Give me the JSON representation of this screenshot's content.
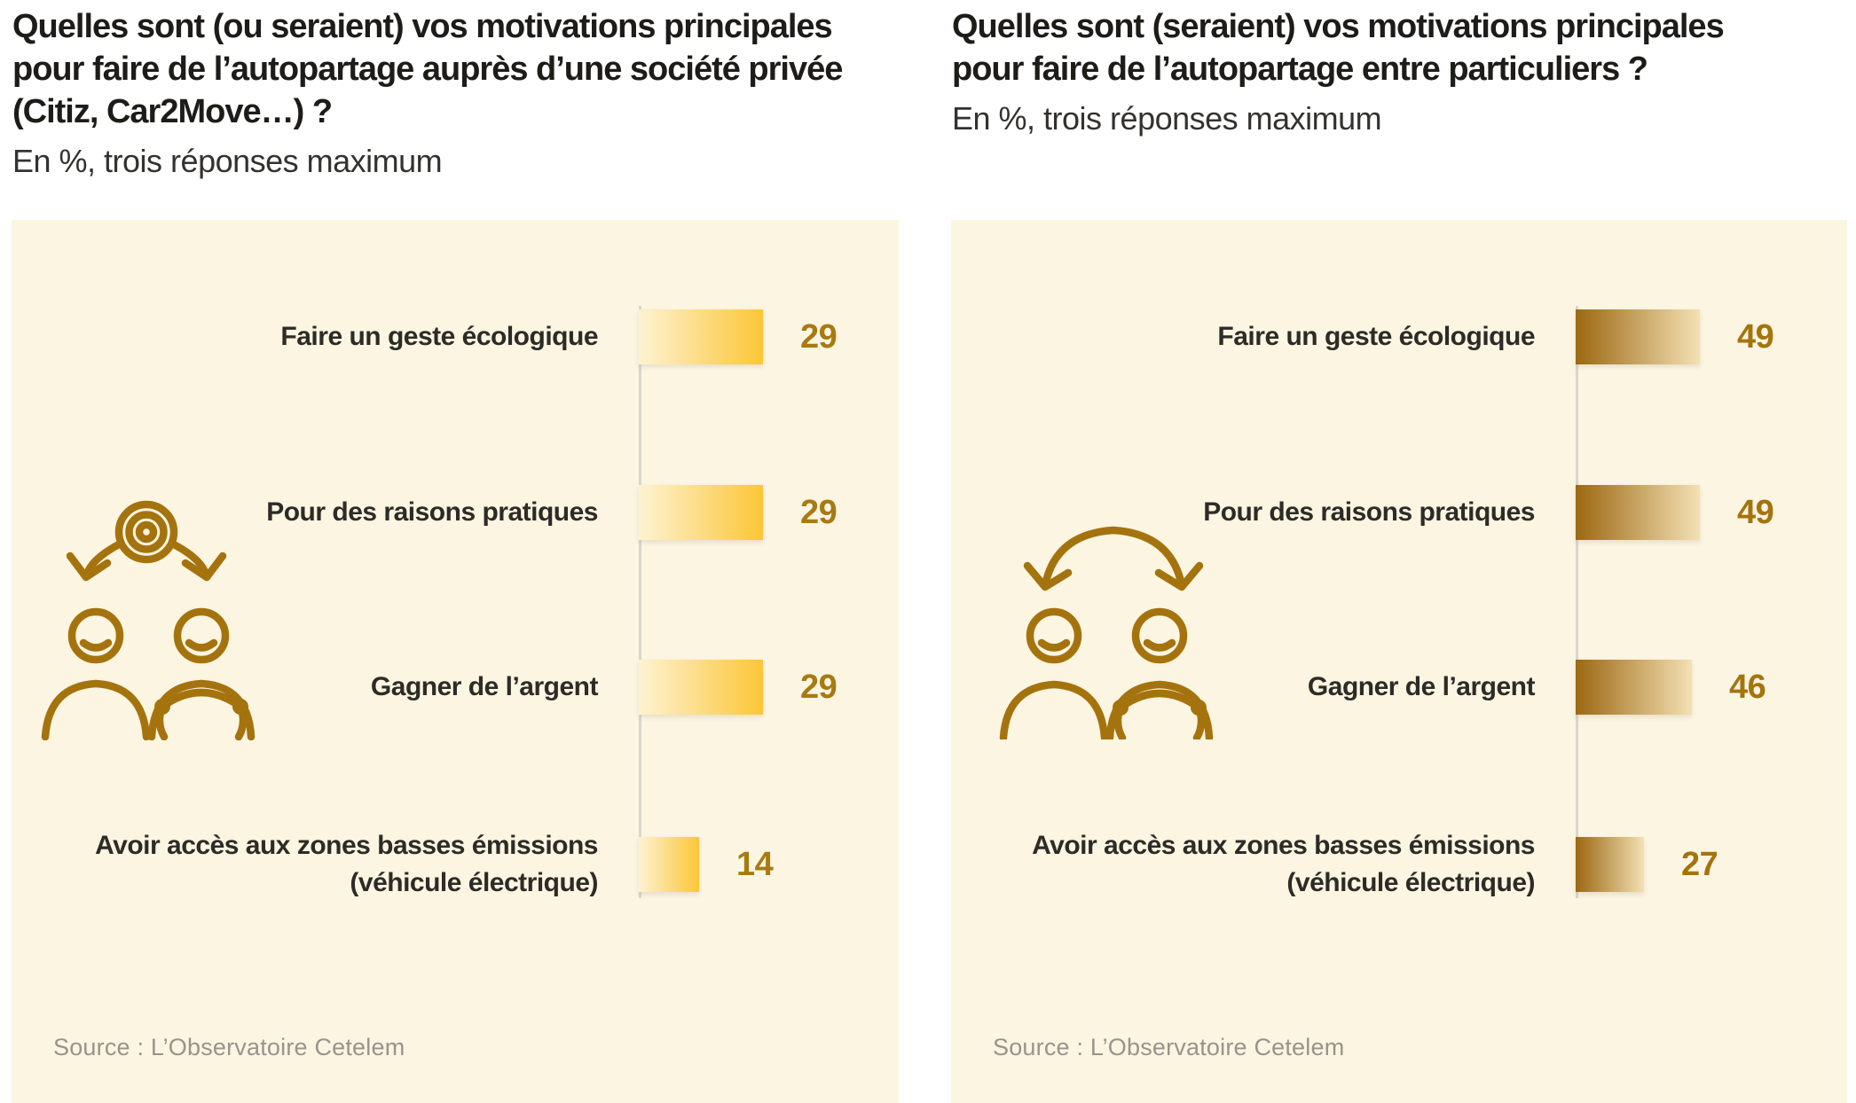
{
  "chart_data": [
    {
      "type": "bar",
      "orientation": "horizontal",
      "title": "Quelles sont (ou seraient) vos motivations principales pour faire de l’autopartage auprès d’une société privée (Citiz, Car2Move…) ?",
      "title_lines": [
        "Quelles sont (ou seraient) vos motivations principales",
        "pour faire de l’autopartage auprès d’une société privée",
        "(Citiz, Car2Move…) ?"
      ],
      "subtitle": "En %, trois réponses maximum",
      "categories": [
        "Faire un geste écologique",
        "Pour des raisons pratiques",
        "Gagner de l’argent",
        "Avoir accès aux zones basses émissions (véhicule électrique)"
      ],
      "values": [
        29,
        29,
        29,
        14
      ],
      "unit": "%",
      "xlim": [
        0,
        29
      ],
      "grid": false,
      "legend": "none",
      "source": "Source : L’Observatoire Cetelem",
      "icon": "goal-shared-between-two-people-icon",
      "bar_gradient": [
        "#FDF2D2",
        "#FCC636"
      ],
      "value_color": "#A87A12"
    },
    {
      "type": "bar",
      "orientation": "horizontal",
      "title": "Quelles sont (seraient) vos motivations principales pour faire de l’autopartage entre particuliers ?",
      "title_lines": [
        "Quelles sont (seraient) vos motivations principales",
        "pour faire de l’autopartage entre particuliers ?"
      ],
      "subtitle": "En %, trois réponses maximum",
      "categories": [
        "Faire un geste écologique",
        "Pour des raisons pratiques",
        "Gagner de l’argent",
        "Avoir accès aux zones basses émissions (véhicule électrique)"
      ],
      "values": [
        49,
        49,
        46,
        27
      ],
      "unit": "%",
      "xlim": [
        0,
        49
      ],
      "grid": false,
      "legend": "none",
      "source": "Source : L’Observatoire Cetelem",
      "icon": "exchange-between-two-people-icon",
      "bar_gradient": [
        "#9C6812",
        "#F3E0B4"
      ],
      "value_color": "#A5730E"
    }
  ],
  "colors": {
    "panel_bg": "#FCF5E2",
    "axis": "#D9D6CF",
    "title": "#1E1C19",
    "subtitle": "#343230",
    "label": "#2E2B27",
    "source": "#99938B",
    "icon": "#A5730E"
  }
}
